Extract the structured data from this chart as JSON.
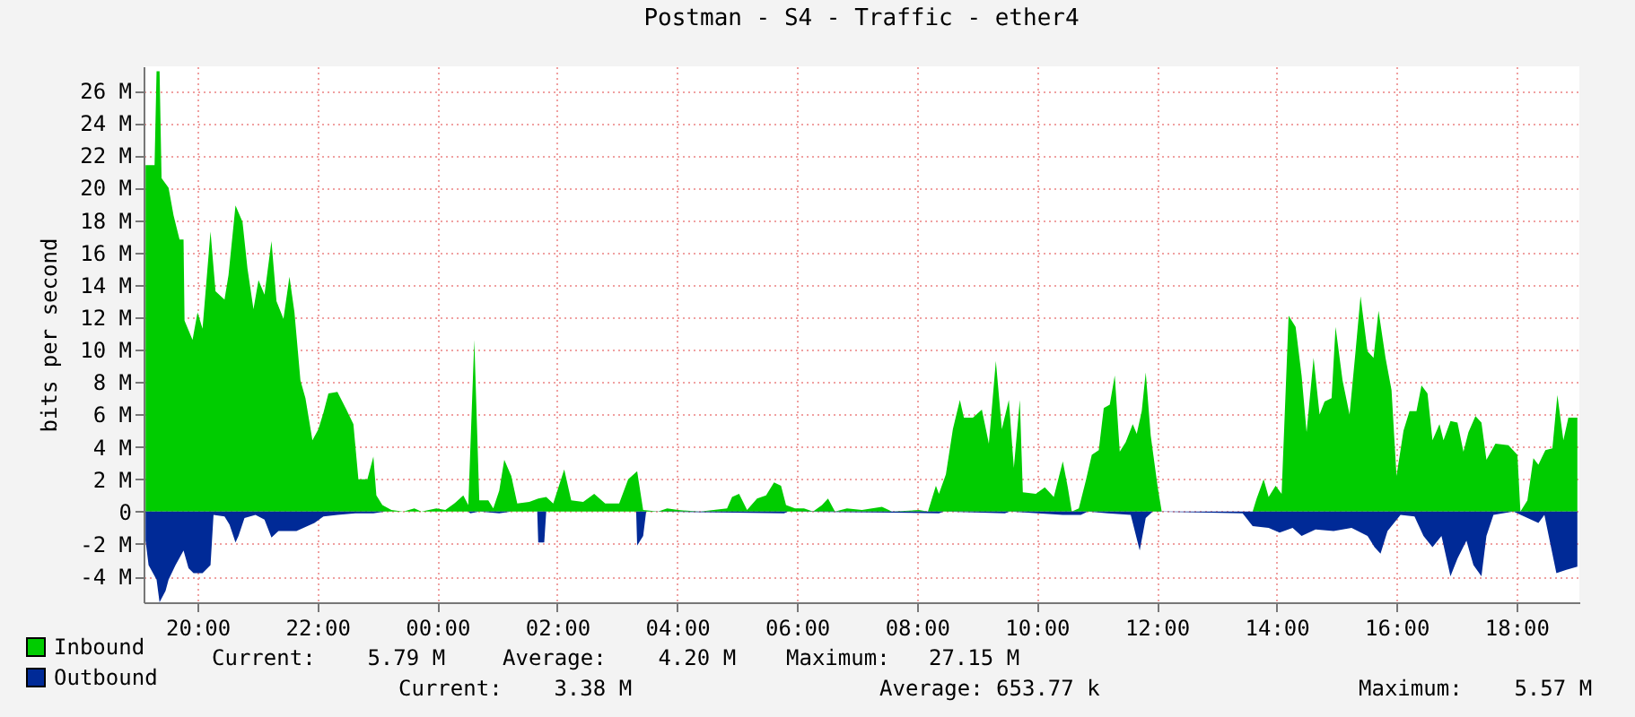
{
  "chart_data": {
    "type": "area",
    "title": "Postman - S4 - Traffic - ether4",
    "ylabel": "bits per second",
    "xlim": [
      "--01-01T19:06",
      "--01-02T19:03"
    ],
    "ylim": [
      -5.6,
      27.5
    ],
    "xticks": [
      {
        "value": "--01-01T20:00",
        "label": "20:00"
      },
      {
        "value": "--01-01T22:00",
        "label": "22:00"
      },
      {
        "value": "--01-02T00:00",
        "label": "00:00"
      },
      {
        "value": "--01-02T02:00",
        "label": "02:00"
      },
      {
        "value": "--01-02T04:00",
        "label": "04:00"
      },
      {
        "value": "--01-02T06:00",
        "label": "06:00"
      },
      {
        "value": "--01-02T08:00",
        "label": "08:00"
      },
      {
        "value": "--01-02T10:00",
        "label": "10:00"
      },
      {
        "value": "--01-02T12:00",
        "label": "12:00"
      },
      {
        "value": "--01-02T14:00",
        "label": "14:00"
      },
      {
        "value": "--01-02T16:00",
        "label": "16:00"
      },
      {
        "value": "--01-02T18:00",
        "label": "18:00"
      }
    ],
    "yticks": [
      {
        "value": -4,
        "label": "-4 M"
      },
      {
        "value": -2,
        "label": "-2 M"
      },
      0,
      {
        "value": 2,
        "label": "2 M"
      },
      {
        "value": 4,
        "label": "4 M"
      },
      {
        "value": 6,
        "label": "6 M"
      },
      {
        "value": 8,
        "label": "8 M"
      },
      {
        "value": 10,
        "label": "10 M"
      },
      {
        "value": 12,
        "label": "12 M"
      },
      {
        "value": 14,
        "label": "14 M"
      },
      {
        "value": 16,
        "label": "16 M"
      },
      {
        "value": 18,
        "label": "18 M"
      },
      {
        "value": 20,
        "label": "20 M"
      },
      {
        "value": 22,
        "label": "22 M"
      },
      {
        "value": 24,
        "label": "24 M"
      },
      {
        "value": 26,
        "label": "26 M"
      }
    ],
    "grid": true,
    "legend": "bottom",
    "series": [
      {
        "name": "Inbound",
        "color": "#00cc00",
        "x": [
          "--01-01T19:08",
          "--01-01T19:17",
          "--01-01T19:19",
          "--01-01T19:22",
          "--01-01T19:24",
          "--01-01T19:31",
          "--01-01T19:36",
          "--01-01T19:42",
          "--01-01T19:46",
          "--01-01T19:47",
          "--01-01T19:55",
          "--01-01T20:00",
          "--01-01T20:05",
          "--01-01T20:13",
          "--01-01T20:18",
          "--01-01T20:27",
          "--01-01T20:31",
          "--01-01T20:38",
          "--01-01T20:45",
          "--01-01T20:50",
          "--01-01T20:56",
          "--01-01T21:01",
          "--01-01T21:07",
          "--01-01T21:14",
          "--01-01T21:19",
          "--01-01T21:26",
          "--01-01T21:32",
          "--01-01T21:37",
          "--01-01T21:43",
          "--01-01T21:48",
          "--01-01T21:55",
          "--01-01T22:01",
          "--01-01T22:06",
          "--01-01T22:11",
          "--01-01T22:20",
          "--01-01T22:29",
          "--01-01T22:36",
          "--01-01T22:41",
          "--01-01T22:50",
          "--01-01T22:56",
          "--01-01T22:59",
          "--01-01T23:05",
          "--01-01T23:14",
          "--01-01T23:26",
          "--01-01T23:37",
          "--01-01T23:44",
          "--01-01T23:59",
          "--01-02T00:08",
          "--01-02T00:17",
          "--01-02T00:26",
          "--01-02T00:31",
          "--01-02T00:37",
          "--01-02T00:42",
          "--01-02T00:51",
          "--01-02T00:56",
          "--01-02T01:02",
          "--01-02T01:07",
          "--01-02T01:14",
          "--01-02T01:20",
          "--01-02T01:32",
          "--01-02T01:41",
          "--01-02T01:49",
          "--01-02T01:56",
          "--01-02T02:07",
          "--01-02T02:14",
          "--01-02T02:26",
          "--01-02T02:37",
          "--01-02T02:48",
          "--01-02T03:02",
          "--01-02T03:11",
          "--01-02T03:20",
          "--01-02T03:26",
          "--01-02T03:41",
          "--01-02T03:50",
          "--01-02T04:01",
          "--01-02T04:23",
          "--01-02T04:50",
          "--01-02T04:55",
          "--01-02T05:02",
          "--01-02T05:10",
          "--01-02T05:20",
          "--01-02T05:29",
          "--01-02T05:37",
          "--01-02T05:44",
          "--01-02T05:49",
          "--01-02T05:58",
          "--01-02T06:07",
          "--01-02T06:16",
          "--01-02T06:25",
          "--01-02T06:31",
          "--01-02T06:38",
          "--01-02T06:50",
          "--01-02T07:05",
          "--01-02T07:25",
          "--01-02T07:35",
          "--01-02T08:02",
          "--01-02T08:11",
          "--01-02T08:19",
          "--01-02T08:22",
          "--01-02T08:29",
          "--01-02T08:36",
          "--01-02T08:43",
          "--01-02T08:47",
          "--01-02T08:56",
          "--01-02T09:05",
          "--01-02T09:12",
          "--01-02T09:19",
          "--01-02T09:25",
          "--01-02T09:32",
          "--01-02T09:37",
          "--01-02T09:43",
          "--01-02T09:46",
          "--01-02T09:59",
          "--01-02T10:08",
          "--01-02T10:17",
          "--01-02T10:26",
          "--01-02T10:31",
          "--01-02T10:35",
          "--01-02T10:42",
          "--01-02T10:49",
          "--01-02T10:55",
          "--01-02T11:02",
          "--01-02T11:07",
          "--01-02T11:13",
          "--01-02T11:18",
          "--01-02T11:23",
          "--01-02T11:29",
          "--01-02T11:36",
          "--01-02T11:40",
          "--01-02T11:45",
          "--01-02T11:49",
          "--01-02T11:54",
          "--01-02T12:01",
          "--01-02T12:05",
          "--01-02T13:36",
          "--01-02T13:40",
          "--01-02T13:47",
          "--01-02T13:52",
          "--01-02T13:59",
          "--01-02T14:05",
          "--01-02T14:12",
          "--01-02T14:19",
          "--01-02T14:25",
          "--01-02T14:30",
          "--01-02T14:37",
          "--01-02T14:43",
          "--01-02T14:48",
          "--01-02T14:55",
          "--01-02T14:59",
          "--01-02T15:06",
          "--01-02T15:13",
          "--01-02T15:19",
          "--01-02T15:24",
          "--01-02T15:31",
          "--01-02T15:37",
          "--01-02T15:42",
          "--01-02T15:49",
          "--01-02T15:55",
          "--01-02T16:00",
          "--01-02T16:07",
          "--01-02T16:13",
          "--01-02T16:20",
          "--01-02T16:25",
          "--01-02T16:31",
          "--01-02T16:36",
          "--01-02T16:43",
          "--01-02T16:47",
          "--01-02T16:54",
          "--01-02T17:01",
          "--01-02T17:07",
          "--01-02T17:12",
          "--01-02T17:19",
          "--01-02T17:25",
          "--01-02T17:30",
          "--01-02T17:39",
          "--01-02T17:52",
          "--01-02T18:01",
          "--01-02T18:04",
          "--01-02T18:11",
          "--01-02T18:17",
          "--01-02T18:22",
          "--01-02T18:29",
          "--01-02T18:36",
          "--01-02T18:41",
          "--01-02T18:47",
          "--01-02T18:52",
          "--01-02T19:01"
        ],
        "values": [
          21.4,
          21.4,
          27.2,
          27.2,
          20.6,
          20.0,
          18.3,
          16.8,
          16.8,
          11.8,
          10.6,
          12.3,
          11.3,
          17.3,
          13.6,
          13.1,
          14.6,
          18.9,
          17.9,
          15.0,
          12.5,
          14.3,
          13.4,
          16.7,
          13.0,
          11.9,
          14.5,
          12.3,
          8.1,
          7.0,
          4.4,
          5.1,
          6.1,
          7.3,
          7.4,
          6.3,
          5.4,
          2.0,
          2.0,
          3.4,
          1.0,
          0.4,
          0.1,
          0,
          0.2,
          0,
          0.2,
          0.1,
          0.5,
          1.0,
          0.4,
          10.6,
          0.7,
          0.7,
          0.2,
          1.3,
          3.2,
          2.2,
          0.5,
          0.6,
          0.8,
          0.9,
          0.5,
          2.6,
          0.7,
          0.6,
          1.1,
          0.5,
          0.5,
          2.0,
          2.5,
          0.1,
          0,
          0.2,
          0.1,
          0,
          0.2,
          0.9,
          1.1,
          0.1,
          0.8,
          1.0,
          1.8,
          1.6,
          0.4,
          0.2,
          0.2,
          0,
          0.4,
          0.8,
          0,
          0.2,
          0.1,
          0.3,
          0,
          0.1,
          0,
          1.6,
          1.1,
          2.3,
          5.1,
          6.9,
          5.8,
          5.8,
          6.3,
          4.2,
          9.3,
          5.1,
          6.9,
          2.7,
          6.9,
          1.2,
          1.1,
          1.5,
          0.9,
          3.1,
          1.5,
          0,
          0.2,
          1.9,
          3.5,
          3.8,
          6.4,
          6.6,
          8.4,
          3.7,
          4.3,
          5.4,
          4.8,
          6.2,
          8.6,
          4.7,
          1.5,
          0,
          0,
          0.8,
          2.0,
          0.9,
          1.6,
          1.1,
          12.1,
          11.4,
          8.4,
          4.9,
          9.5,
          6.0,
          6.8,
          7.0,
          11.4,
          8.1,
          6.0,
          9.9,
          13.3,
          9.9,
          9.5,
          12.4,
          9.5,
          7.5,
          2.2,
          5.0,
          6.2,
          6.2,
          7.8,
          7.3,
          4.4,
          5.4,
          4.4,
          5.6,
          5.5,
          3.7,
          4.9,
          5.9,
          5.5,
          3.2,
          4.2,
          4.1,
          3.5,
          0,
          0.7,
          3.3,
          2.9,
          3.8,
          3.9,
          7.2,
          4.4,
          5.8,
          5.8
        ]
      },
      {
        "name": "Outbound",
        "color": "#002a97",
        "x": [
          "--01-01T19:08",
          "--01-01T19:11",
          "--01-01T19:19",
          "--01-01T19:22",
          "--01-01T19:28",
          "--01-01T19:31",
          "--01-01T19:38",
          "--01-01T19:46",
          "--01-01T19:51",
          "--01-01T19:56",
          "--01-01T20:05",
          "--01-01T20:13",
          "--01-01T20:16",
          "--01-01T20:27",
          "--01-01T20:32",
          "--01-01T20:38",
          "--01-01T20:41",
          "--01-01T20:47",
          "--01-01T20:58",
          "--01-01T21:07",
          "--01-01T21:14",
          "--01-01T21:21",
          "--01-01T21:39",
          "--01-01T21:57",
          "--01-01T22:06",
          "--01-01T22:20",
          "--01-01T22:38",
          "--01-01T22:56",
          "--01-01T23:08",
          "--01-02T00:31",
          "--01-02T00:33",
          "--01-02T00:42",
          "--01-02T01:02",
          "--01-02T01:14",
          "--01-02T01:40",
          "--01-02T01:41",
          "--01-02T01:47",
          "--01-02T01:49",
          "--01-02T03:19",
          "--01-02T03:20",
          "--01-02T03:26",
          "--01-02T03:29",
          "--01-02T05:47",
          "--01-02T05:51",
          "--01-02T08:22",
          "--01-02T08:27",
          "--01-02T09:28",
          "--01-02T09:33",
          "--01-02T10:26",
          "--01-02T10:44",
          "--01-02T10:51",
          "--01-02T11:11",
          "--01-02T11:34",
          "--01-02T11:43",
          "--01-02T11:49",
          "--01-02T11:56",
          "--01-02T13:26",
          "--01-02T13:36",
          "--01-02T13:52",
          "--01-02T14:03",
          "--01-02T14:16",
          "--01-02T14:25",
          "--01-02T14:39",
          "--01-02T14:57",
          "--01-02T15:15",
          "--01-02T15:31",
          "--01-02T15:38",
          "--01-02T15:44",
          "--01-02T15:51",
          "--01-02T16:04",
          "--01-02T16:18",
          "--01-02T16:27",
          "--01-02T16:36",
          "--01-02T16:45",
          "--01-02T16:54",
          "--01-02T17:01",
          "--01-02T17:10",
          "--01-02T17:17",
          "--01-02T17:25",
          "--01-02T17:30",
          "--01-02T17:37",
          "--01-02T17:57",
          "--01-02T18:22",
          "--01-02T18:28",
          "--01-02T18:40",
          "--01-02T18:50",
          "--01-02T19:01"
        ],
        "values": [
          -1.8,
          -3.3,
          -4.2,
          -5.6,
          -4.9,
          -4.2,
          -3.3,
          -2.4,
          -3.5,
          -3.8,
          -3.8,
          -3.3,
          -0.2,
          -0.3,
          -0.8,
          -1.9,
          -1.5,
          -0.4,
          -0.2,
          -0.5,
          -1.6,
          -1.2,
          -1.2,
          -0.7,
          -0.3,
          -0.2,
          -0.1,
          -0.1,
          0,
          0,
          -0.1,
          0,
          -0.1,
          0,
          0,
          -1.9,
          -1.9,
          0,
          0,
          -2.1,
          -1.5,
          0,
          -0.1,
          0,
          -0.1,
          0,
          -0.1,
          0,
          -0.2,
          -0.2,
          0,
          -0.1,
          -0.2,
          -2.4,
          -0.4,
          0,
          -0.1,
          -0.9,
          -1.0,
          -1.3,
          -1.0,
          -1.5,
          -1.1,
          -1.2,
          -1.0,
          -1.5,
          -2.2,
          -2.6,
          -1.2,
          -0.2,
          -0.3,
          -1.5,
          -2.2,
          -1.5,
          -4.0,
          -2.9,
          -1.8,
          -3.3,
          -4.0,
          -1.5,
          -0.2,
          0,
          -0.7,
          -0.2,
          -3.8,
          -3.6,
          -3.4
        ]
      }
    ],
    "annotations": [
      "Current:    5.79 M",
      "Average:    4.20 M",
      "Maximum:   27.15 M",
      "Current:    3.38 M",
      "Average: 653.77 k",
      "Maximum:    5.57 M"
    ]
  }
}
